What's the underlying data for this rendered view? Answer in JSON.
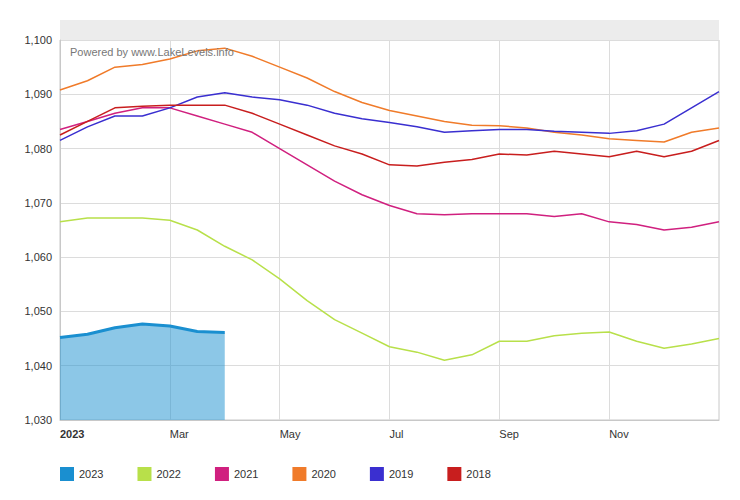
{
  "chart_data": {
    "type": "line",
    "annotation": "Powered by www.LakeLevels.info",
    "categories": [
      "2023",
      null,
      null,
      null,
      "Mar",
      null,
      null,
      null,
      "May",
      null,
      null,
      null,
      "Jul",
      null,
      null,
      null,
      "Sep",
      null,
      null,
      null,
      "Nov",
      null,
      null,
      null,
      null
    ],
    "ylim": [
      1030,
      1100
    ],
    "yticks": [
      {
        "value": 1030,
        "label": "1,030"
      },
      {
        "value": 1040,
        "label": "1,040"
      },
      {
        "value": 1050,
        "label": "1,050"
      },
      {
        "value": 1060,
        "label": "1,060"
      },
      {
        "value": 1070,
        "label": "1,070"
      },
      {
        "value": 1080,
        "label": "1,080"
      },
      {
        "value": 1090,
        "label": "1,090"
      },
      {
        "value": 1100,
        "label": "1,100"
      }
    ],
    "grid": true,
    "legend": "bottom",
    "marker": "none",
    "series": [
      {
        "name": "2023",
        "type": "area",
        "color": "#1a8fd0",
        "values": [
          1045.2,
          1045.8,
          1047,
          1047.7,
          1047.3,
          1046.3,
          1046.1,
          null,
          null,
          null,
          null,
          null,
          null,
          null,
          null,
          null,
          null,
          null,
          null,
          null,
          null,
          null,
          null,
          null,
          null
        ]
      },
      {
        "name": "2022",
        "color": "#b8e04a",
        "values": [
          1066.5,
          1067.2,
          1067.2,
          1067.2,
          1066.8,
          1065,
          1062,
          1059.5,
          1056,
          1052,
          1048.5,
          1046,
          1043.5,
          1042.5,
          1041,
          1042,
          1044.5,
          1044.5,
          1045.5,
          1046,
          1046.2,
          1044.5,
          1043.2,
          1044,
          1045
        ]
      },
      {
        "name": "2021",
        "color": "#d0207f",
        "values": [
          1083.5,
          1085,
          1086.5,
          1087.5,
          1087.5,
          1086,
          1084.5,
          1083,
          1080,
          1077,
          1074,
          1071.5,
          1069.5,
          1068,
          1067.8,
          1068,
          1068,
          1068,
          1067.5,
          1068,
          1066.5,
          1066,
          1065,
          1065.5,
          1066.5
        ]
      },
      {
        "name": "2020",
        "color": "#f07b2a",
        "values": [
          1090.8,
          1092.5,
          1095,
          1095.5,
          1096.5,
          1098,
          1098.5,
          1097,
          1095,
          1093,
          1090.5,
          1088.5,
          1087,
          1086,
          1085,
          1084.3,
          1084.2,
          1083.8,
          1083,
          1082.5,
          1081.8,
          1081.5,
          1081.2,
          1083,
          1083.8
        ]
      },
      {
        "name": "2019",
        "color": "#3a2fd0",
        "values": [
          1081.5,
          1084,
          1086,
          1086,
          1087.5,
          1089.5,
          1090.3,
          1089.5,
          1089,
          1088,
          1086.5,
          1085.5,
          1084.8,
          1084,
          1083,
          1083.3,
          1083.5,
          1083.5,
          1083.2,
          1083,
          1082.8,
          1083.3,
          1084.5,
          1087.5,
          1090.5
        ]
      },
      {
        "name": "2018",
        "color": "#c81e1e",
        "values": [
          1082.5,
          1085,
          1087.5,
          1087.8,
          1088,
          1088,
          1088,
          1086.5,
          1084.5,
          1082.5,
          1080.5,
          1079,
          1077,
          1076.8,
          1077.5,
          1078,
          1079,
          1078.8,
          1079.5,
          1079,
          1078.5,
          1079.5,
          1078.5,
          1079.5,
          1081.5
        ]
      }
    ]
  }
}
